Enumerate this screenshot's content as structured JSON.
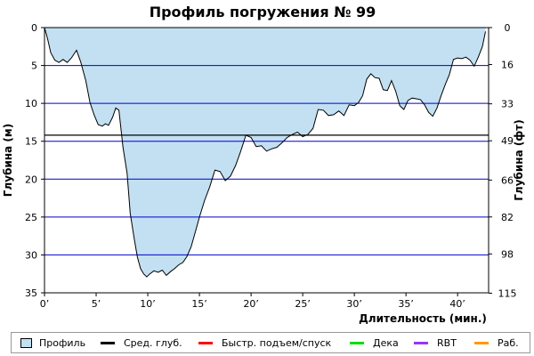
{
  "chart_data": {
    "type": "area",
    "title": "Профиль погружения № 99",
    "xlabel": "Длительность (мин.)",
    "ylabel_left": "Глубина (м)",
    "ylabel_right": "Глубина (фт)",
    "xlim": [
      0,
      43
    ],
    "ylim": [
      0,
      35
    ],
    "y_inverted": true,
    "x_ticks": [
      {
        "value": 0,
        "label": "0’"
      },
      {
        "value": 5,
        "label": "5’"
      },
      {
        "value": 10,
        "label": "10’"
      },
      {
        "value": 15,
        "label": "15’"
      },
      {
        "value": 20,
        "label": "20’"
      },
      {
        "value": 25,
        "label": "25’"
      },
      {
        "value": 30,
        "label": "30’"
      },
      {
        "value": 35,
        "label": "35’"
      },
      {
        "value": 40,
        "label": "40’"
      }
    ],
    "y_ticks_left": [
      {
        "value": 0,
        "label": "0"
      },
      {
        "value": 5,
        "label": "5"
      },
      {
        "value": 10,
        "label": "10"
      },
      {
        "value": 15,
        "label": "15"
      },
      {
        "value": 20,
        "label": "20"
      },
      {
        "value": 25,
        "label": "25"
      },
      {
        "value": 30,
        "label": "30"
      },
      {
        "value": 35,
        "label": "35"
      }
    ],
    "y_ticks_right": [
      {
        "value": 0,
        "label": "0"
      },
      {
        "value": 4.88,
        "label": "16"
      },
      {
        "value": 10.06,
        "label": "33"
      },
      {
        "value": 14.94,
        "label": "49"
      },
      {
        "value": 20.12,
        "label": "66"
      },
      {
        "value": 24.99,
        "label": "82"
      },
      {
        "value": 29.87,
        "label": "98"
      },
      {
        "value": 35.05,
        "label": "115"
      }
    ],
    "gridlines_y": [
      5,
      10,
      15,
      20,
      25,
      30
    ],
    "average_depth": 14.2,
    "series": [
      {
        "name": "Профиль",
        "x": [
          0,
          0.3,
          0.6,
          1.0,
          1.4,
          1.8,
          2.2,
          2.6,
          3.1,
          3.5,
          4.0,
          4.4,
          4.8,
          5.2,
          5.6,
          5.9,
          6.2,
          6.6,
          6.9,
          7.2,
          7.6,
          8.0,
          8.3,
          8.7,
          9.0,
          9.3,
          9.6,
          9.9,
          10.2,
          10.6,
          11.0,
          11.4,
          11.8,
          12.2,
          12.6,
          13.0,
          13.4,
          13.8,
          14.2,
          14.6,
          15.0,
          15.5,
          16.0,
          16.5,
          17.0,
          17.5,
          18.0,
          18.5,
          19.0,
          19.5,
          20.0,
          20.5,
          21.0,
          21.5,
          22.0,
          22.5,
          23.0,
          23.5,
          24.0,
          24.5,
          25.0,
          25.5,
          26.0,
          26.5,
          27.0,
          27.5,
          28.0,
          28.5,
          29.0,
          29.5,
          30.0,
          30.4,
          30.8,
          31.2,
          31.6,
          32.0,
          32.4,
          32.8,
          33.2,
          33.6,
          34.0,
          34.4,
          34.8,
          35.2,
          35.6,
          36.0,
          36.4,
          36.8,
          37.2,
          37.6,
          38.0,
          38.4,
          38.8,
          39.2,
          39.6,
          40.0,
          40.4,
          40.8,
          41.2,
          41.6,
          42.0,
          42.4,
          42.7
        ],
        "depth": [
          0,
          1.5,
          3.3,
          4.3,
          4.6,
          4.2,
          4.6,
          4.0,
          3.0,
          4.5,
          7.0,
          9.9,
          11.5,
          12.8,
          13.0,
          12.7,
          12.9,
          11.8,
          10.6,
          10.9,
          15.8,
          19.2,
          24.5,
          28.0,
          30.3,
          31.8,
          32.5,
          32.9,
          32.5,
          32.1,
          32.3,
          32.0,
          32.7,
          32.2,
          31.8,
          31.3,
          31.0,
          30.2,
          28.9,
          27.0,
          25.0,
          22.8,
          21.0,
          18.8,
          19.0,
          20.2,
          19.6,
          18.2,
          16.3,
          14.2,
          14.5,
          15.7,
          15.6,
          16.3,
          16.0,
          15.8,
          15.2,
          14.5,
          14.1,
          13.8,
          14.4,
          14.1,
          13.3,
          10.8,
          10.9,
          11.6,
          11.5,
          11.0,
          11.6,
          10.2,
          10.3,
          9.9,
          9.0,
          6.8,
          6.1,
          6.6,
          6.7,
          8.2,
          8.3,
          7.0,
          8.4,
          10.3,
          10.8,
          9.6,
          9.3,
          9.4,
          9.5,
          10.2,
          11.2,
          11.7,
          10.6,
          9.0,
          7.5,
          6.2,
          4.2,
          4.0,
          4.1,
          3.9,
          4.3,
          5.1,
          3.9,
          2.5,
          0.5
        ]
      }
    ],
    "legend": {
      "placement": "bottom",
      "items": [
        {
          "label": "Профиль",
          "kind": "swatch",
          "color": "#c2e0f2"
        },
        {
          "label": "Сред. глуб.",
          "kind": "line",
          "color": "#000000"
        },
        {
          "label": "Быстр. подъем/спуск",
          "kind": "line",
          "color": "#ff0000"
        },
        {
          "label": "Дека",
          "kind": "line",
          "color": "#00dd00"
        },
        {
          "label": "RBT",
          "kind": "line",
          "color": "#9933ff"
        },
        {
          "label": "Раб.",
          "kind": "line",
          "color": "#ff9900"
        }
      ]
    },
    "colors": {
      "fill": "#c2e0f2",
      "profile_line": "#000000",
      "grid": "#0000cc",
      "average": "#000000"
    }
  }
}
